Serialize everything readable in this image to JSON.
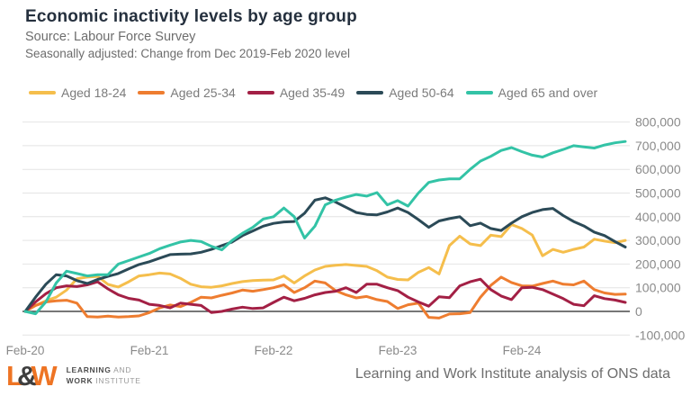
{
  "header": {
    "title": "Economic inactivity levels by age group",
    "source_line": "Source: Labour Force Survey",
    "subtitle_line": "Seasonally adjusted: Change from Dec 2019-Feb 2020 level"
  },
  "chart_data": {
    "type": "line",
    "title": "Economic inactivity levels by age group",
    "subtitle": "Seasonally adjusted: Change from Dec 2019-Feb 2020 level",
    "source": "Labour Force Survey",
    "grid": true,
    "legend_position": "top",
    "x_unit": "month",
    "x_start": "Feb-20",
    "x_end": "Dec-24",
    "n_points": 59,
    "ylim": [
      -100000,
      800000
    ],
    "x_ticks": [
      {
        "label": "Feb-20",
        "month_index": 0
      },
      {
        "label": "Feb-21",
        "month_index": 12
      },
      {
        "label": "Feb-22",
        "month_index": 24
      },
      {
        "label": "Feb-23",
        "month_index": 36
      },
      {
        "label": "Feb-24",
        "month_index": 48
      }
    ],
    "y_ticks": [
      {
        "value": 800000,
        "label": "800,000"
      },
      {
        "value": 700000,
        "label": "700,000"
      },
      {
        "value": 600000,
        "label": "600,000"
      },
      {
        "value": 500000,
        "label": "500,000"
      },
      {
        "value": 400000,
        "label": "400,000"
      },
      {
        "value": 300000,
        "label": "300,000"
      },
      {
        "value": 200000,
        "label": "200,000"
      },
      {
        "value": 100000,
        "label": "100,000"
      },
      {
        "value": 0,
        "label": "0"
      },
      {
        "value": -100000,
        "label": "-100,000"
      }
    ],
    "series": [
      {
        "name": "Aged 18-24",
        "color": "#F5BE4C",
        "values": [
          0,
          25000,
          45000,
          60000,
          90000,
          138000,
          145000,
          148000,
          114000,
          103000,
          125000,
          150000,
          155000,
          162000,
          158000,
          140000,
          115000,
          104000,
          102000,
          108000,
          118000,
          126000,
          130000,
          132000,
          133000,
          150000,
          120000,
          150000,
          175000,
          190000,
          195000,
          198000,
          194000,
          190000,
          172000,
          145000,
          135000,
          133000,
          165000,
          185000,
          158000,
          278000,
          318000,
          285000,
          278000,
          322000,
          316000,
          367000,
          350000,
          323000,
          235000,
          262000,
          250000,
          262000,
          272000,
          305000,
          297000,
          290000,
          300000
        ]
      },
      {
        "name": "Aged 25-34",
        "color": "#EE7D30",
        "values": [
          0,
          25000,
          40000,
          45000,
          47000,
          35000,
          -22000,
          -24000,
          -20000,
          -24000,
          -22000,
          -19000,
          -5000,
          15000,
          27000,
          20000,
          38000,
          60000,
          57000,
          68000,
          78000,
          90000,
          85000,
          92000,
          100000,
          112000,
          80000,
          100000,
          128000,
          120000,
          88000,
          70000,
          57000,
          63000,
          50000,
          42000,
          12000,
          28000,
          35000,
          -25000,
          -28000,
          -11000,
          -10000,
          -5000,
          60000,
          110000,
          145000,
          122000,
          108000,
          107000,
          118000,
          128000,
          115000,
          112000,
          128000,
          92000,
          78000,
          72000,
          73000
        ]
      },
      {
        "name": "Aged 35-49",
        "color": "#A32045",
        "values": [
          0,
          40000,
          75000,
          100000,
          108000,
          105000,
          112000,
          125000,
          95000,
          70000,
          55000,
          48000,
          30000,
          25000,
          15000,
          35000,
          30000,
          25000,
          -5000,
          0,
          10000,
          18000,
          12000,
          15000,
          38000,
          60000,
          45000,
          55000,
          70000,
          80000,
          85000,
          100000,
          80000,
          115000,
          115000,
          100000,
          88000,
          60000,
          40000,
          22000,
          62000,
          58000,
          108000,
          125000,
          136000,
          92000,
          65000,
          50000,
          100000,
          102000,
          92000,
          73000,
          54000,
          30000,
          24000,
          66000,
          54000,
          48000,
          38000
        ]
      },
      {
        "name": "Aged 50-64",
        "color": "#2B4A57",
        "values": [
          0,
          60000,
          115000,
          155000,
          150000,
          130000,
          118000,
          135000,
          148000,
          160000,
          180000,
          198000,
          210000,
          225000,
          240000,
          242000,
          243000,
          250000,
          262000,
          278000,
          293000,
          320000,
          340000,
          360000,
          372000,
          378000,
          380000,
          415000,
          470000,
          480000,
          462000,
          440000,
          418000,
          410000,
          408000,
          420000,
          437000,
          418000,
          388000,
          355000,
          382000,
          392000,
          400000,
          362000,
          373000,
          350000,
          342000,
          373000,
          400000,
          418000,
          430000,
          435000,
          405000,
          380000,
          361000,
          335000,
          320000,
          295000,
          272000
        ]
      },
      {
        "name": "Aged 65 and over",
        "color": "#33C3A6",
        "values": [
          0,
          -10000,
          40000,
          120000,
          170000,
          160000,
          150000,
          155000,
          155000,
          200000,
          215000,
          230000,
          245000,
          265000,
          280000,
          293000,
          300000,
          295000,
          275000,
          260000,
          300000,
          330000,
          355000,
          390000,
          400000,
          437000,
          400000,
          310000,
          360000,
          450000,
          470000,
          483000,
          494000,
          487000,
          502000,
          450000,
          468000,
          445000,
          500000,
          545000,
          555000,
          560000,
          560000,
          600000,
          635000,
          655000,
          680000,
          692000,
          675000,
          660000,
          652000,
          670000,
          684000,
          700000,
          695000,
          690000,
          703000,
          712000,
          718000
        ]
      }
    ],
    "style": {
      "gridline_color": "#E4E4E4",
      "zero_line_color": "#4A4A4A",
      "tick_label_color": "#8A8A8A"
    }
  },
  "footer": {
    "logo": {
      "l": "L",
      "amp": "&",
      "w": "W"
    },
    "logo_line1_bold": "LEARNING",
    "logo_line1_rest": " AND",
    "logo_line2_bold": "WORK",
    "logo_line2_rest": " INSTITUTE",
    "attribution": "Learning and Work Institute analysis of ONS data"
  }
}
